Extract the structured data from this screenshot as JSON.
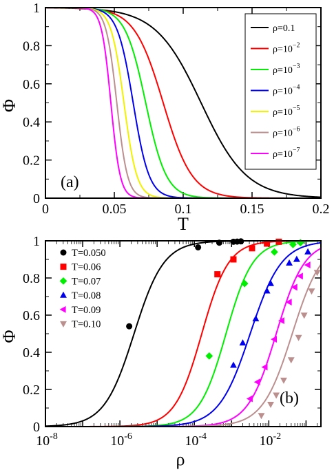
{
  "chart_data": [
    {
      "type": "line",
      "panel_label": "(a)",
      "xlabel": "T",
      "ylabel": "Φ",
      "xlim": [
        0,
        0.2
      ],
      "ylim": [
        0,
        1
      ],
      "x_ticks": [
        "0",
        "0.05",
        "0.1",
        "0.15",
        "0.2"
      ],
      "y_ticks": [
        "0",
        "0.2",
        "0.4",
        "0.6",
        "0.8",
        "1"
      ],
      "legend_position": "top-right",
      "series": [
        {
          "name": "ρ=0.1",
          "legend_base": "ρ=0.1",
          "legend_exp": "",
          "color": "#000000",
          "T_half": 0.113,
          "width": 0.0165
        },
        {
          "name": "ρ=10^-2",
          "legend_base": "ρ=10",
          "legend_exp": "−2",
          "color": "#ff0000",
          "T_half": 0.0855,
          "width": 0.0105
        },
        {
          "name": "ρ=10^-3",
          "legend_base": "ρ=10",
          "legend_exp": "−3",
          "color": "#00ee00",
          "T_half": 0.0728,
          "width": 0.0075
        },
        {
          "name": "ρ=10^-4",
          "legend_base": "ρ=10",
          "legend_exp": "−4",
          "color": "#0000ee",
          "T_half": 0.0637,
          "width": 0.0058
        },
        {
          "name": "ρ=10^-5",
          "legend_base": "ρ=10",
          "legend_exp": "−5",
          "color": "#f2f200",
          "T_half": 0.057,
          "width": 0.0047
        },
        {
          "name": "ρ=10^-6",
          "legend_base": "ρ=10",
          "legend_exp": "−6",
          "color": "#bc8f8f",
          "T_half": 0.0518,
          "width": 0.0039
        },
        {
          "name": "ρ=10^-7",
          "legend_base": "ρ=10",
          "legend_exp": "−7",
          "color": "#ff00ff",
          "T_half": 0.0475,
          "width": 0.0034
        }
      ]
    },
    {
      "type": "scatter",
      "panel_label": "(b)",
      "xlabel": "ρ",
      "ylabel": "Φ",
      "x_scale": "log",
      "xlim_log10": [
        -8,
        -0.6
      ],
      "ylim": [
        0,
        1
      ],
      "x_ticks": [
        {
          "exp": -8,
          "base": "10",
          "sup": "-8"
        },
        {
          "exp": -6,
          "base": "10",
          "sup": "-6"
        },
        {
          "exp": -4,
          "base": "10",
          "sup": "-4"
        },
        {
          "exp": -2,
          "base": "10",
          "sup": "-2"
        }
      ],
      "y_ticks": [
        "0",
        "0.2",
        "0.4",
        "0.6",
        "0.8",
        "1"
      ],
      "legend_position": "top-left",
      "series": [
        {
          "name": "T=0.050",
          "color": "#000000",
          "marker": "circle",
          "log10_rho_half": -5.62,
          "width": 0.4,
          "points": [
            [
              -5.75,
              0.54
            ],
            [
              -3.9,
              0.965
            ],
            [
              -3.33,
              0.99
            ],
            [
              -2.95,
              0.995
            ],
            [
              -2.85,
              0.996
            ],
            [
              -2.75,
              0.997
            ]
          ]
        },
        {
          "name": "T=0.06",
          "color": "#ff0000",
          "marker": "square",
          "log10_rho_half": -3.8,
          "width": 0.36,
          "points": [
            [
              -3.38,
              0.82
            ],
            [
              -2.95,
              0.9
            ],
            [
              -2.45,
              0.96
            ],
            [
              -2.05,
              0.985
            ],
            [
              -1.73,
              0.995
            ]
          ]
        },
        {
          "name": "T=0.07",
          "color": "#00ee00",
          "marker": "diamond",
          "log10_rho_half": -3.15,
          "width": 0.36,
          "points": [
            [
              -3.6,
              0.38
            ],
            [
              -2.65,
              0.77
            ],
            [
              -1.85,
              0.94
            ],
            [
              -1.35,
              0.98
            ],
            [
              -1.15,
              0.99
            ]
          ]
        },
        {
          "name": "T=0.08",
          "color": "#0000ee",
          "marker": "triangle-up",
          "log10_rho_half": -2.5,
          "width": 0.42,
          "points": [
            [
              -2.95,
              0.33
            ],
            [
              -2.7,
              0.45
            ],
            [
              -2.35,
              0.58
            ],
            [
              -2.05,
              0.73
            ],
            [
              -1.95,
              0.77
            ],
            [
              -1.45,
              0.88
            ],
            [
              -1.25,
              0.9
            ],
            [
              -0.95,
              0.94
            ]
          ]
        },
        {
          "name": "T=0.09",
          "color": "#ff00ff",
          "marker": "triangle-left",
          "log10_rho_half": -1.8,
          "width": 0.38,
          "points": [
            [
              -2.5,
              0.15
            ],
            [
              -2.3,
              0.24
            ],
            [
              -2.1,
              0.32
            ],
            [
              -1.85,
              0.47
            ],
            [
              -1.65,
              0.57
            ],
            [
              -1.45,
              0.67
            ],
            [
              -1.3,
              0.75
            ],
            [
              -1.15,
              0.81
            ],
            [
              -0.95,
              0.87
            ]
          ]
        },
        {
          "name": "T=0.10",
          "color": "#bc8f8f",
          "marker": "triangle-down",
          "log10_rho_half": -1.37,
          "width": 0.4,
          "points": [
            [
              -2.2,
              0.06
            ],
            [
              -1.95,
              0.12
            ],
            [
              -1.8,
              0.17
            ],
            [
              -1.6,
              0.25
            ],
            [
              -1.4,
              0.36
            ],
            [
              -1.2,
              0.48
            ],
            [
              -1.05,
              0.6
            ],
            [
              -0.85,
              0.73
            ],
            [
              -0.7,
              0.83
            ]
          ]
        }
      ]
    }
  ]
}
